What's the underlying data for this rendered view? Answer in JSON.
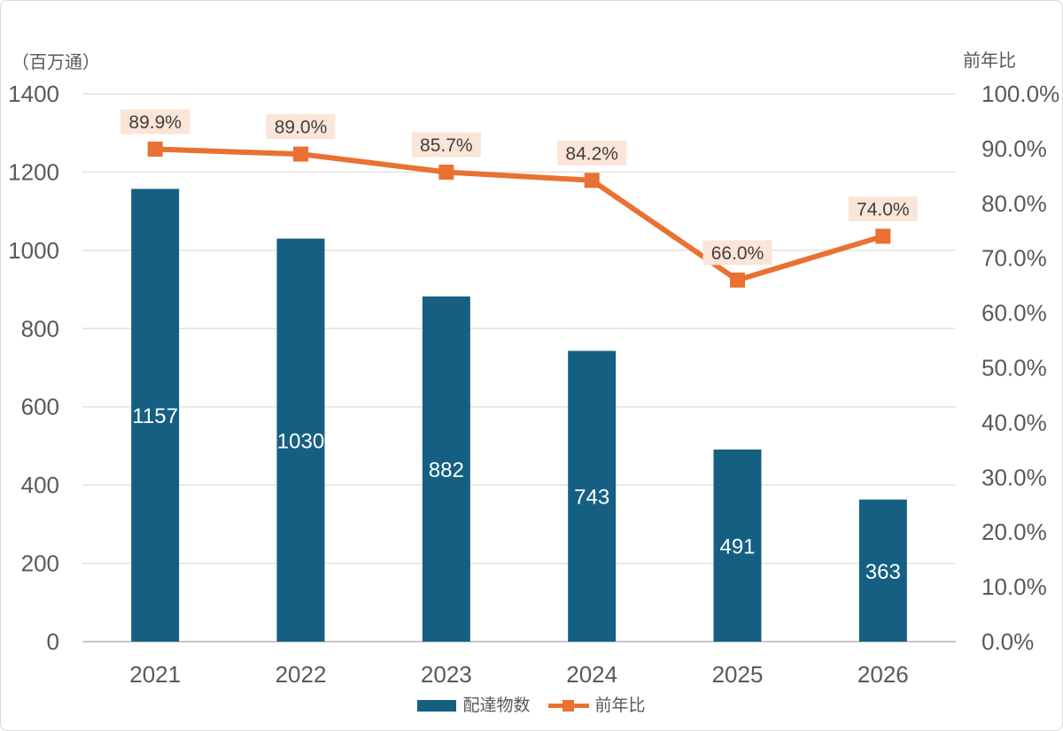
{
  "colors": {
    "bar": "#156082",
    "line": "#E97132",
    "line_label_bg": "#FBE5D8",
    "line_label_text": "#404040",
    "bar_label_text": "#FFFFFF",
    "axis_text": "#595959",
    "gridline": "#E2E2E2",
    "axis_line": "#C8C8C8",
    "frame_border": "#D9D9D9"
  },
  "chart_data": {
    "type": "bar+line combo",
    "categories": [
      "2021",
      "2022",
      "2023",
      "2024",
      "2025",
      "2026"
    ],
    "series": [
      {
        "name": "配達物数",
        "type": "bar",
        "axis": "left",
        "values": [
          1157,
          1030,
          882,
          743,
          491,
          363
        ],
        "data_labels": [
          "1157",
          "1030",
          "882",
          "743",
          "491",
          "363"
        ]
      },
      {
        "name": "前年比",
        "type": "line",
        "axis": "right",
        "values": [
          89.9,
          89.0,
          85.7,
          84.2,
          66.0,
          74.0
        ],
        "data_labels": [
          "89.9%",
          "89.0%",
          "85.7%",
          "84.2%",
          "66.0%",
          "74.0%"
        ]
      }
    ],
    "left_axis": {
      "title": "（百万通）",
      "min": 0,
      "max": 1400,
      "step": 200,
      "ticks": [
        "1400",
        "1200",
        "1000",
        "800",
        "600",
        "400",
        "200",
        "0"
      ]
    },
    "right_axis": {
      "title": "前年比",
      "min": 0,
      "max": 100,
      "step": 10,
      "ticks": [
        "100.0%",
        "90.0%",
        "80.0%",
        "70.0%",
        "60.0%",
        "50.0%",
        "40.0%",
        "30.0%",
        "20.0%",
        "10.0%",
        "0.0%"
      ]
    },
    "grid": true,
    "legend_position": "bottom",
    "legend": [
      {
        "label": "配達物数",
        "swatch": "bar"
      },
      {
        "label": "前年比",
        "swatch": "line"
      }
    ]
  }
}
